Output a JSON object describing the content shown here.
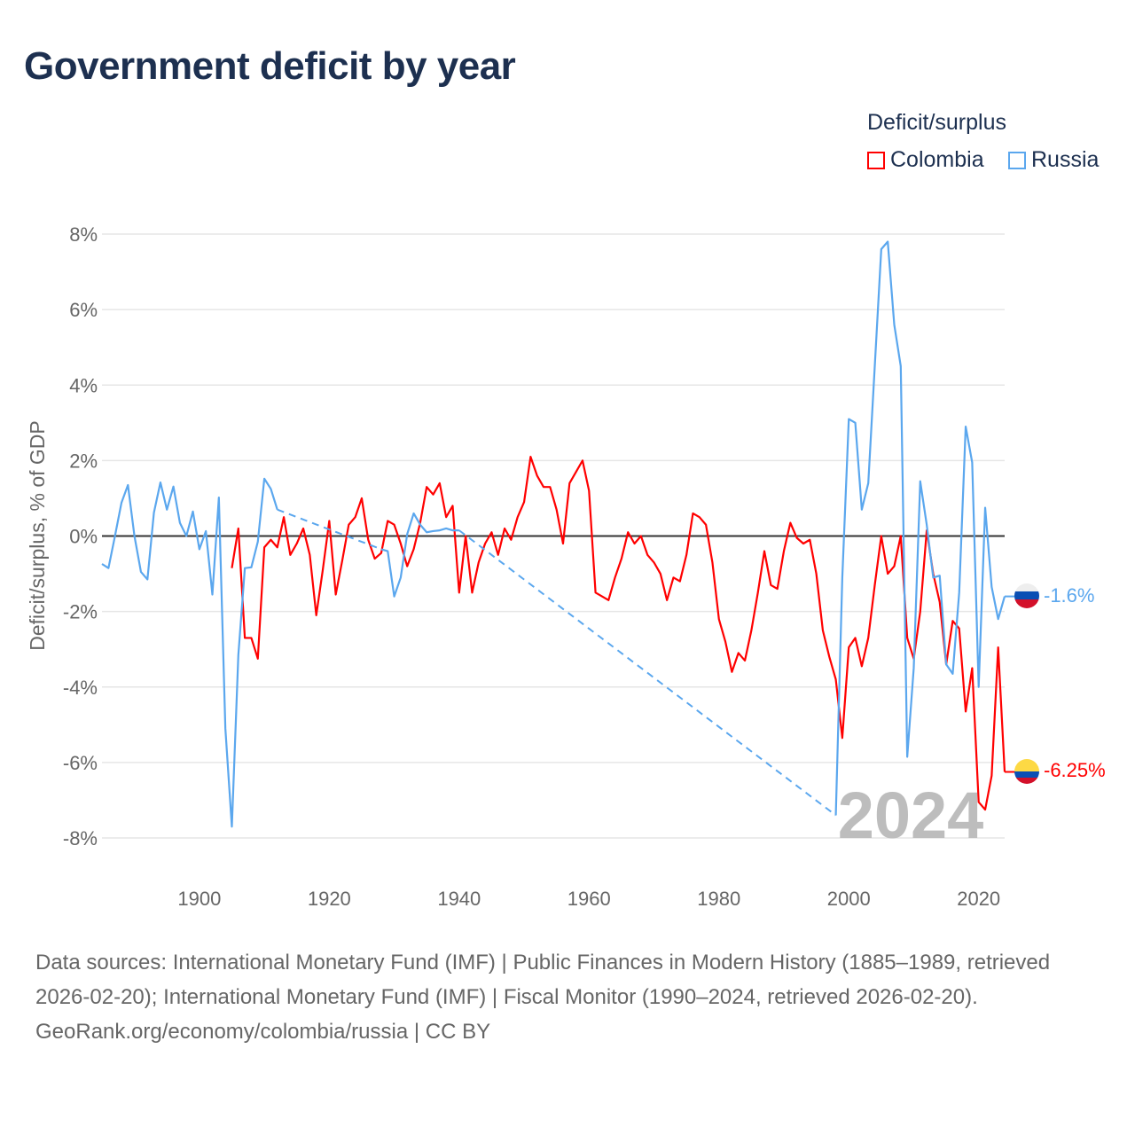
{
  "title": "Government deficit by year",
  "legend": {
    "title": "Deficit/surplus",
    "items": [
      {
        "label": "Colombia",
        "color": "#ff0000"
      },
      {
        "label": "Russia",
        "color": "#5ba7ee"
      }
    ]
  },
  "footer": {
    "sources": "Data sources: International Monetary Fund (IMF) | Public Finances in Modern History (1885–1989, retrieved 2026-02-20); International Monetary Fund (IMF) | Fiscal Monitor (1990–2024, retrieved 2026-02-20).",
    "credit": "GeoRank.org/economy/colombia/russia | CC BY"
  },
  "chart_data": {
    "type": "line",
    "title": "Government deficit by year",
    "xlabel": "",
    "ylabel": "Deficit/surplus, % of GDP",
    "xlim": [
      1885,
      2024
    ],
    "ylim": [
      -8,
      8
    ],
    "xticks": [
      1900,
      1920,
      1940,
      1960,
      1980,
      2000,
      2020
    ],
    "yticks": [
      8,
      6,
      4,
      2,
      0,
      -2,
      -4,
      -6,
      -8
    ],
    "ytick_labels": [
      "8%",
      "6%",
      "4%",
      "2%",
      "0%",
      "-2%",
      "-4%",
      "-6%",
      "-8%"
    ],
    "year_watermark": "2024",
    "series": [
      {
        "name": "Colombia",
        "color": "#ff0000",
        "end_label": "-6.25%",
        "segments": [
          {
            "start": 1905,
            "values": [
              -0.85,
              0.2,
              -2.7,
              -2.7,
              -3.25,
              -0.3,
              -0.1,
              -0.3,
              0.5,
              -0.5,
              -0.2,
              0.2,
              -0.5,
              -2.1,
              -0.9,
              0.4,
              -1.55,
              -0.65,
              0.3,
              0.5,
              1.0,
              -0.1,
              -0.6,
              -0.45,
              0.4,
              0.3,
              -0.2,
              -0.8,
              -0.35,
              0.35,
              1.3,
              1.1,
              1.4,
              0.5,
              0.8,
              -1.5,
              0,
              -1.5,
              -0.7,
              -0.2,
              0.1,
              -0.5,
              0.2,
              -0.1,
              0.5,
              0.9,
              2.1,
              1.6,
              1.3,
              1.3,
              0.7,
              -0.2,
              1.4,
              1.7,
              2.0,
              1.2,
              -1.5,
              -1.6,
              -1.7,
              -1.1,
              -0.6,
              0.1,
              -0.2,
              0,
              -0.5,
              -0.7,
              -1.0,
              -1.7,
              -1.1,
              -1.2,
              -0.5,
              0.6,
              0.5,
              0.3,
              -0.7,
              -2.2,
              -2.8,
              -3.6,
              -3.1,
              -3.3,
              -2.5,
              -1.5,
              -0.4,
              -1.3,
              -1.4,
              -0.4,
              0.35,
              -0.05,
              -0.2,
              -0.1,
              -1.0,
              -2.5,
              -3.2,
              -3.8,
              -5.35,
              -2.95,
              -2.7,
              -3.45,
              -2.7,
              -1.3,
              0.0,
              -1.0,
              -0.8,
              0.0,
              -2.7,
              -3.25,
              -2.0,
              0.15,
              -1.0,
              -1.75,
              -3.4,
              -2.25,
              -2.45,
              -4.65,
              -3.5,
              -7.05,
              -7.25,
              -6.35,
              -2.95,
              -6.25
            ]
          }
        ]
      },
      {
        "name": "Russia",
        "color": "#5ba7ee",
        "end_label": "-1.6%",
        "segments": [
          {
            "start": 1885,
            "values": [
              -0.74,
              -0.85,
              0,
              0.88,
              1.35,
              0,
              -0.95,
              -1.15,
              0.62,
              1.42,
              0.7,
              1.31,
              0.35,
              0,
              0.65,
              -0.35,
              0.13,
              -1.55,
              1.02,
              -5.1,
              -7.7,
              -3.15,
              -0.85,
              -0.83,
              -0.15,
              1.52,
              1.25,
              0.7
            ]
          },
          {
            "start": 1928,
            "values": [
              -0.35,
              -0.4,
              -1.6,
              -1.1,
              0.05,
              0.6,
              0.3,
              0.1,
              0.13,
              0.15,
              0.2,
              0.15,
              0.15
            ]
          },
          {
            "start": 1998,
            "values": [
              -7.4,
              -1.1,
              3.1,
              3.0,
              0.7,
              1.4,
              4.5,
              7.6,
              7.8,
              5.6,
              4.5,
              -5.85,
              -3.5,
              1.45,
              0.3,
              -1.1,
              -1.05,
              -3.4,
              -3.65,
              -1.5,
              2.9,
              1.95,
              -4.0,
              0.75,
              -1.35,
              -2.2,
              -1.6
            ]
          }
        ]
      }
    ]
  }
}
